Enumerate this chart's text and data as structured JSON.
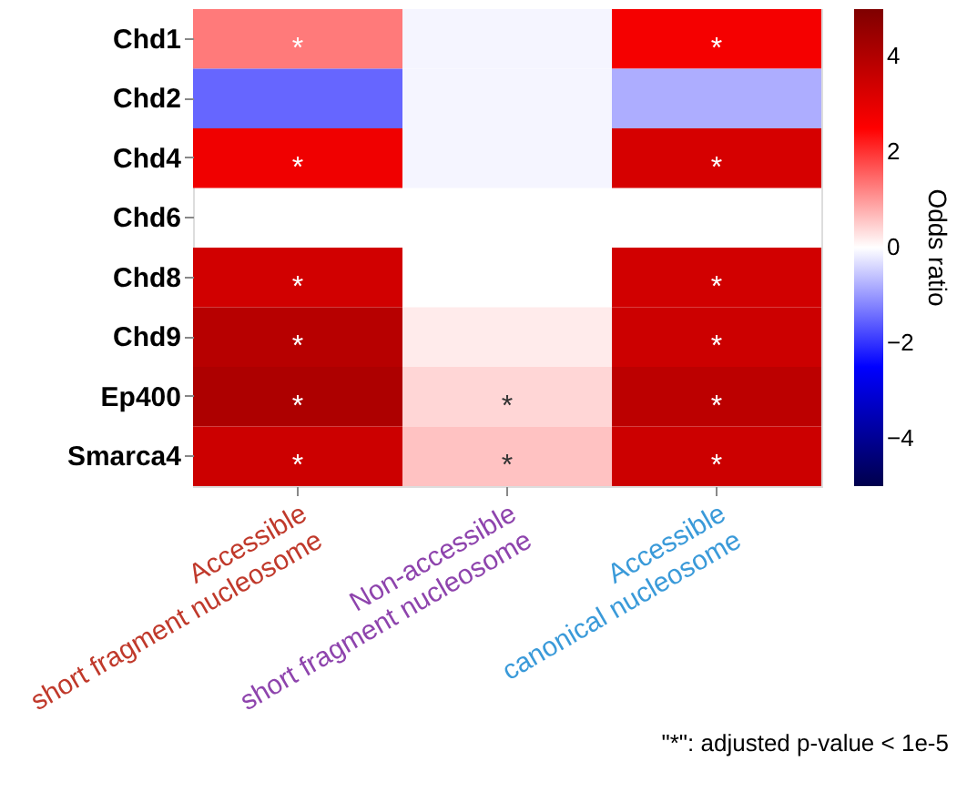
{
  "chart_data": {
    "type": "heatmap",
    "categories": [
      "Accessible\nshort fragment nucleosome",
      "Non-accessible\nshort fragment nucleosome",
      "Accessible\ncanonical nucleosome"
    ],
    "y_categories": [
      "Chd1",
      "Chd2",
      "Chd4",
      "Chd6",
      "Chd8",
      "Chd9",
      "Ep400",
      "Smarca4"
    ],
    "cells": [
      [
        1.3,
        -0.1,
        2.7
      ],
      [
        -1.5,
        -0.1,
        -0.8
      ],
      [
        2.8,
        -0.1,
        3.3
      ],
      [
        null,
        null,
        null
      ],
      [
        3.4,
        0.0,
        3.4
      ],
      [
        3.9,
        0.2,
        3.5
      ],
      [
        4.1,
        0.4,
        3.8
      ],
      [
        3.5,
        0.6,
        3.5
      ]
    ],
    "cell_labels": [
      [
        "*",
        null,
        "*"
      ],
      [
        null,
        null,
        null
      ],
      [
        "*",
        null,
        "*"
      ],
      [
        null,
        null,
        null
      ],
      [
        "*",
        null,
        "*"
      ],
      [
        "*",
        null,
        "*"
      ],
      [
        "*",
        "*",
        "*"
      ],
      [
        "*",
        "*",
        "*"
      ]
    ],
    "clabel": "Odds ratio",
    "clim": [
      -5,
      5
    ],
    "cticks": [
      -4,
      -2,
      0,
      2,
      4
    ],
    "annotations": [
      "\"*\": adjusted p-value < 1e-5"
    ]
  }
}
